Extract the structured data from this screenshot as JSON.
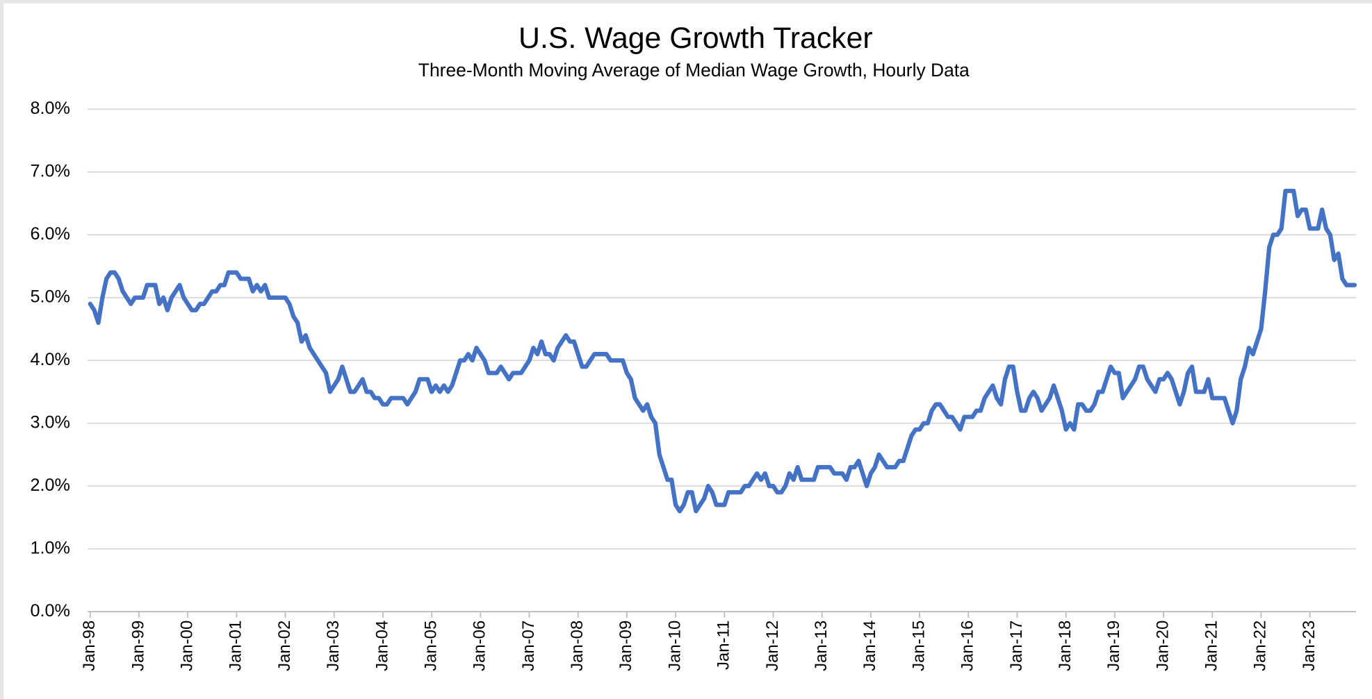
{
  "chart_data": {
    "type": "line",
    "title": "U.S. Wage Growth Tracker",
    "subtitle": "Three-Month Moving Average of Median Wage Growth, Hourly Data",
    "categories": [
      "Jan-98",
      null,
      null,
      null,
      null,
      null,
      null,
      null,
      null,
      null,
      null,
      null,
      "Jan-99",
      null,
      null,
      null,
      null,
      null,
      null,
      null,
      null,
      null,
      null,
      null,
      "Jan-00",
      null,
      null,
      null,
      null,
      null,
      null,
      null,
      null,
      null,
      null,
      null,
      "Jan-01",
      null,
      null,
      null,
      null,
      null,
      null,
      null,
      null,
      null,
      null,
      null,
      "Jan-02",
      null,
      null,
      null,
      null,
      null,
      null,
      null,
      null,
      null,
      null,
      null,
      "Jan-03",
      null,
      null,
      null,
      null,
      null,
      null,
      null,
      null,
      null,
      null,
      null,
      "Jan-04",
      null,
      null,
      null,
      null,
      null,
      null,
      null,
      null,
      null,
      null,
      null,
      "Jan-05",
      null,
      null,
      null,
      null,
      null,
      null,
      null,
      null,
      null,
      null,
      null,
      "Jan-06",
      null,
      null,
      null,
      null,
      null,
      null,
      null,
      null,
      null,
      null,
      null,
      "Jan-07",
      null,
      null,
      null,
      null,
      null,
      null,
      null,
      null,
      null,
      null,
      null,
      "Jan-08",
      null,
      null,
      null,
      null,
      null,
      null,
      null,
      null,
      null,
      null,
      null,
      "Jan-09",
      null,
      null,
      null,
      null,
      null,
      null,
      null,
      null,
      null,
      null,
      null,
      "Jan-10",
      null,
      null,
      null,
      null,
      null,
      null,
      null,
      null,
      null,
      null,
      null,
      "Jan-11",
      null,
      null,
      null,
      null,
      null,
      null,
      null,
      null,
      null,
      null,
      null,
      "Jan-12",
      null,
      null,
      null,
      null,
      null,
      null,
      null,
      null,
      null,
      null,
      null,
      "Jan-13",
      null,
      null,
      null,
      null,
      null,
      null,
      null,
      null,
      null,
      null,
      null,
      "Jan-14",
      null,
      null,
      null,
      null,
      null,
      null,
      null,
      null,
      null,
      null,
      null,
      "Jan-15",
      null,
      null,
      null,
      null,
      null,
      null,
      null,
      null,
      null,
      null,
      null,
      "Jan-16",
      null,
      null,
      null,
      null,
      null,
      null,
      null,
      null,
      null,
      null,
      null,
      "Jan-17",
      null,
      null,
      null,
      null,
      null,
      null,
      null,
      null,
      null,
      null,
      null,
      "Jan-18",
      null,
      null,
      null,
      null,
      null,
      null,
      null,
      null,
      null,
      null,
      null,
      "Jan-19",
      null,
      null,
      null,
      null,
      null,
      null,
      null,
      null,
      null,
      null,
      null,
      "Jan-20",
      null,
      null,
      null,
      null,
      null,
      null,
      null,
      null,
      null,
      null,
      null,
      "Jan-21",
      null,
      null,
      null,
      null,
      null,
      null,
      null,
      null,
      null,
      null,
      null,
      "Jan-22",
      null,
      null,
      null,
      null,
      null,
      null,
      null,
      null,
      null,
      null,
      null,
      "Jan-23",
      null,
      null,
      null,
      null,
      null,
      null,
      null,
      null,
      null,
      null,
      null
    ],
    "series": [
      {
        "name": "Wage growth",
        "color": "#4472c4",
        "values": [
          4.9,
          4.8,
          4.6,
          5.0,
          5.3,
          5.4,
          5.4,
          5.3,
          5.1,
          5.0,
          4.9,
          5.0,
          5.0,
          5.0,
          5.2,
          5.2,
          5.2,
          4.9,
          5.0,
          4.8,
          5.0,
          5.1,
          5.2,
          5.0,
          4.9,
          4.8,
          4.8,
          4.9,
          4.9,
          5.0,
          5.1,
          5.1,
          5.2,
          5.2,
          5.4,
          5.4,
          5.4,
          5.3,
          5.3,
          5.3,
          5.1,
          5.2,
          5.1,
          5.2,
          5.0,
          5.0,
          5.0,
          5.0,
          5.0,
          4.9,
          4.7,
          4.6,
          4.3,
          4.4,
          4.2,
          4.1,
          4.0,
          3.9,
          3.8,
          3.5,
          3.6,
          3.7,
          3.9,
          3.7,
          3.5,
          3.5,
          3.6,
          3.7,
          3.5,
          3.5,
          3.4,
          3.4,
          3.3,
          3.3,
          3.4,
          3.4,
          3.4,
          3.4,
          3.3,
          3.4,
          3.5,
          3.7,
          3.7,
          3.7,
          3.5,
          3.6,
          3.5,
          3.6,
          3.5,
          3.6,
          3.8,
          4.0,
          4.0,
          4.1,
          4.0,
          4.2,
          4.1,
          4.0,
          3.8,
          3.8,
          3.8,
          3.9,
          3.8,
          3.7,
          3.8,
          3.8,
          3.8,
          3.9,
          4.0,
          4.2,
          4.1,
          4.3,
          4.1,
          4.1,
          4.0,
          4.2,
          4.3,
          4.4,
          4.3,
          4.3,
          4.1,
          3.9,
          3.9,
          4.0,
          4.1,
          4.1,
          4.1,
          4.1,
          4.0,
          4.0,
          4.0,
          4.0,
          3.8,
          3.7,
          3.4,
          3.3,
          3.2,
          3.3,
          3.1,
          3.0,
          2.5,
          2.3,
          2.1,
          2.1,
          1.7,
          1.6,
          1.7,
          1.9,
          1.9,
          1.6,
          1.7,
          1.8,
          2.0,
          1.9,
          1.7,
          1.7,
          1.7,
          1.9,
          1.9,
          1.9,
          1.9,
          2.0,
          2.0,
          2.1,
          2.2,
          2.1,
          2.2,
          2.0,
          2.0,
          1.9,
          1.9,
          2.0,
          2.2,
          2.1,
          2.3,
          2.1,
          2.1,
          2.1,
          2.1,
          2.3,
          2.3,
          2.3,
          2.3,
          2.2,
          2.2,
          2.2,
          2.1,
          2.3,
          2.3,
          2.4,
          2.2,
          2.0,
          2.2,
          2.3,
          2.5,
          2.4,
          2.3,
          2.3,
          2.3,
          2.4,
          2.4,
          2.6,
          2.8,
          2.9,
          2.9,
          3.0,
          3.0,
          3.2,
          3.3,
          3.3,
          3.2,
          3.1,
          3.1,
          3.0,
          2.9,
          3.1,
          3.1,
          3.1,
          3.2,
          3.2,
          3.4,
          3.5,
          3.6,
          3.4,
          3.3,
          3.7,
          3.9,
          3.9,
          3.5,
          3.2,
          3.2,
          3.4,
          3.5,
          3.4,
          3.2,
          3.3,
          3.4,
          3.6,
          3.4,
          3.2,
          2.9,
          3.0,
          2.9,
          3.3,
          3.3,
          3.2,
          3.2,
          3.3,
          3.5,
          3.5,
          3.7,
          3.9,
          3.8,
          3.8,
          3.4,
          3.5,
          3.6,
          3.7,
          3.9,
          3.9,
          3.7,
          3.6,
          3.5,
          3.7,
          3.7,
          3.8,
          3.7,
          3.5,
          3.3,
          3.5,
          3.8,
          3.9,
          3.5,
          3.5,
          3.5,
          3.7,
          3.4,
          3.4,
          3.4,
          3.4,
          3.2,
          3.0,
          3.2,
          3.7,
          3.9,
          4.2,
          4.1,
          4.3,
          4.5,
          5.1,
          5.8,
          6.0,
          6.0,
          6.1,
          6.7,
          6.7,
          6.7,
          6.3,
          6.4,
          6.4,
          6.1,
          6.1,
          6.1,
          6.4,
          6.1,
          6.0,
          5.6,
          5.7,
          5.3,
          5.2,
          5.2,
          5.2
        ]
      }
    ],
    "ylim": [
      0,
      8
    ],
    "yticks": [
      {
        "value": 0,
        "label": "0.0%"
      },
      {
        "value": 1,
        "label": "1.0%"
      },
      {
        "value": 2,
        "label": "2.0%"
      },
      {
        "value": 3,
        "label": "3.0%"
      },
      {
        "value": 4,
        "label": "4.0%"
      },
      {
        "value": 5,
        "label": "5.0%"
      },
      {
        "value": 6,
        "label": "6.0%"
      },
      {
        "value": 7,
        "label": "7.0%"
      },
      {
        "value": 8,
        "label": "8.0%"
      }
    ],
    "grid": true
  }
}
